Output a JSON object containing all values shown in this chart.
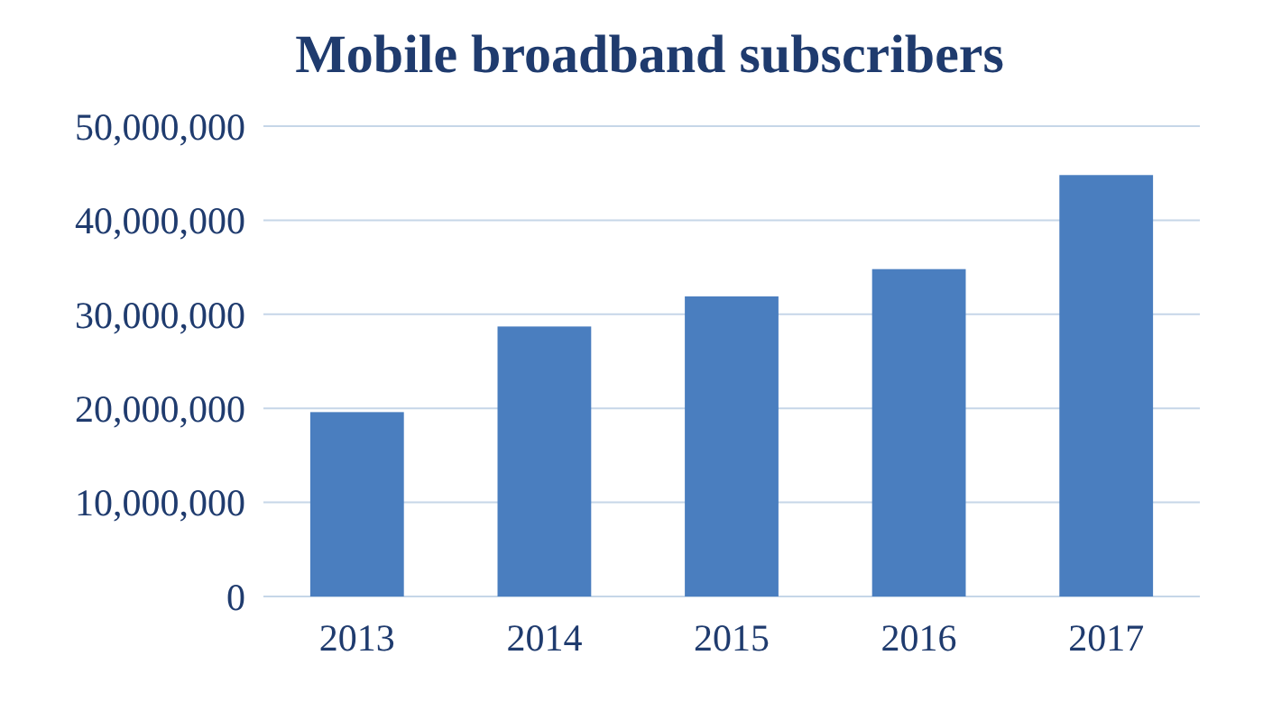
{
  "chart_data": {
    "type": "bar",
    "title": "Mobile broadband subscribers",
    "categories": [
      "2013",
      "2014",
      "2015",
      "2016",
      "2017"
    ],
    "values": [
      19600000,
      28700000,
      31900000,
      34800000,
      44800000
    ],
    "color": "#4a7ebf",
    "ylim": [
      0,
      50000000
    ],
    "yticks": [
      {
        "value": 0,
        "label": "0"
      },
      {
        "value": 10000000,
        "label": "10,000,000"
      },
      {
        "value": 20000000,
        "label": "20,000,000"
      },
      {
        "value": 30000000,
        "label": "30,000,000"
      },
      {
        "value": 40000000,
        "label": "40,000,000"
      },
      {
        "value": 50000000,
        "label": "50,000,000"
      }
    ],
    "grid": "y"
  }
}
